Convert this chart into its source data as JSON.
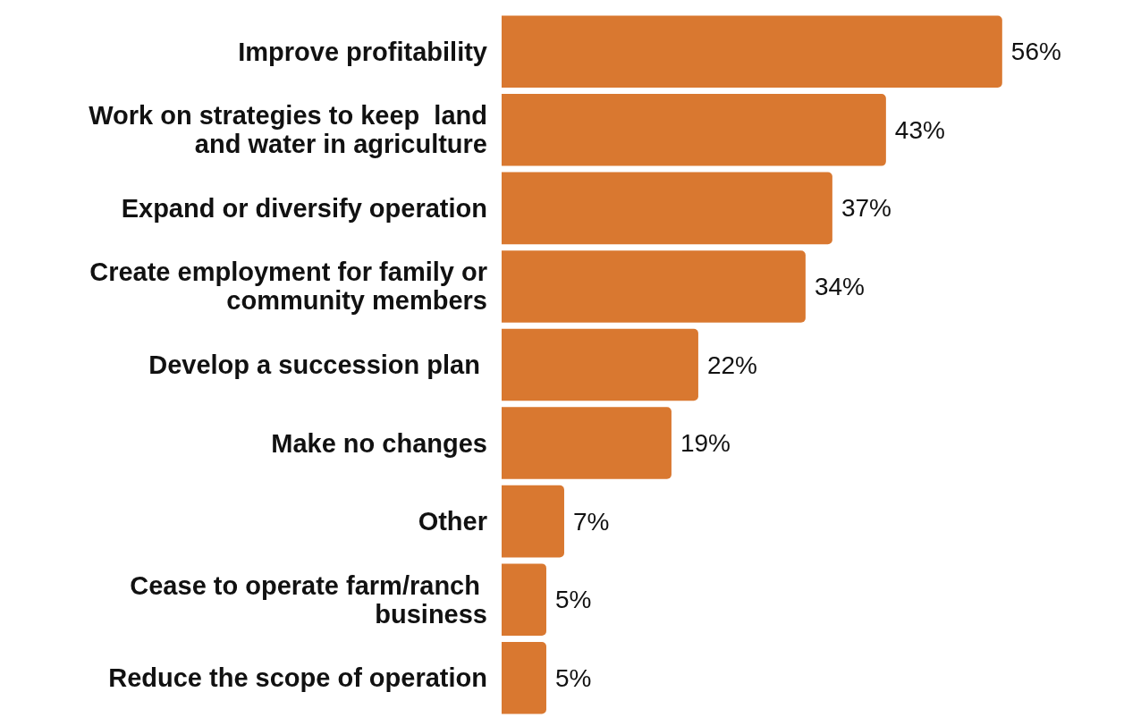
{
  "chart_data": {
    "type": "bar",
    "orientation": "horizontal",
    "categories": [
      "Improve profitability",
      "Work on strategies to keep  land and water in agriculture",
      "Expand or diversify operation",
      "Create employment for family or community members",
      "Develop a succession plan ",
      "Make no changes",
      "Other",
      "Cease to operate farm/ranch business",
      "Reduce the scope of operation"
    ],
    "values": [
      56,
      43,
      37,
      34,
      22,
      19,
      7,
      5,
      5
    ],
    "value_labels": [
      "56%",
      "43%",
      "37%",
      "34%",
      "22%",
      "19%",
      "7%",
      "5%",
      "5%"
    ],
    "color": "#d97830"
  }
}
